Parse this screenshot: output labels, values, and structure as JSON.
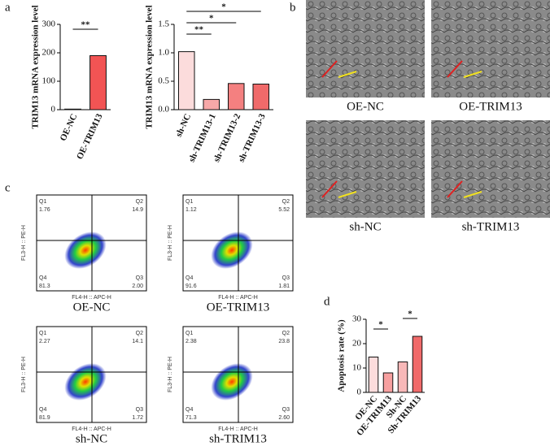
{
  "panel_labels": [
    "a",
    "b",
    "c",
    "d"
  ],
  "chart_data": [
    {
      "type": "bar",
      "y_label": "TRIM13 mRNA expression level",
      "categories": [
        "OE-NC",
        "OE-TRIM13"
      ],
      "values": [
        2,
        190
      ],
      "colors": [
        "#fbd0d0",
        "#f25454"
      ],
      "ylim": [
        0,
        300
      ],
      "yticks": [
        0,
        100,
        200,
        300
      ],
      "annotations": [
        "**"
      ]
    },
    {
      "type": "bar",
      "y_label": "TRIM13 mRNA expression level",
      "categories": [
        "sh-NC",
        "sh-TRIM13-1",
        "sh-TRIM13-2",
        "sh-TRIM13-3"
      ],
      "values": [
        1.02,
        0.18,
        0.46,
        0.45
      ],
      "colors": [
        "#fcdcdc",
        "#f7a8a8",
        "#f48080",
        "#f06a6a"
      ],
      "ylim": [
        0,
        1.5
      ],
      "yticks": [
        {
          "value": 0,
          "label": "0.0"
        },
        {
          "value": 0.5,
          "label": "0.5"
        },
        {
          "value": 1,
          "label": "1.0"
        },
        {
          "value": 1.5,
          "label": "1.5"
        }
      ],
      "annotations": [
        "*",
        "*",
        "**"
      ]
    },
    {
      "type": "bar",
      "y_label": "Apoptosis rate (%)",
      "categories": [
        "OE-NC",
        "OE-TRIM13",
        "Sh-NC",
        "Sh-TRIM13"
      ],
      "values": [
        14.5,
        8,
        12.5,
        23
      ],
      "colors": [
        "#fcdcdc",
        "#f7a0a0",
        "#f8b8b8",
        "#f06a6a"
      ],
      "ylim": [
        0,
        30
      ],
      "yticks": [
        0,
        10,
        20,
        30
      ],
      "annotations": [
        "*",
        "*"
      ]
    }
  ],
  "em_images": {
    "captions": [
      "OE-NC",
      "OE-TRIM13",
      "sh-NC",
      "sh-TRIM13"
    ]
  },
  "flow_plots": {
    "x_label": "FL4-H :: APC-H",
    "y_label": "FL3-H :: PE-H",
    "quadrant_names": [
      "Q1",
      "Q2",
      "Q3",
      "Q4"
    ],
    "plots": [
      {
        "caption": "OE-NC",
        "values": [
          "1.76",
          "14.9",
          "2.00",
          "81.3"
        ]
      },
      {
        "caption": "OE-TRIM13",
        "values": [
          "1.12",
          "5.52",
          "1.81",
          "91.6"
        ]
      },
      {
        "caption": "sh-NC",
        "values": [
          "2.27",
          "14.1",
          "1.72",
          "81.9"
        ]
      },
      {
        "caption": "sh-TRIM13",
        "values": [
          "2.38",
          "23.8",
          "2.60",
          "71.3"
        ]
      }
    ]
  }
}
